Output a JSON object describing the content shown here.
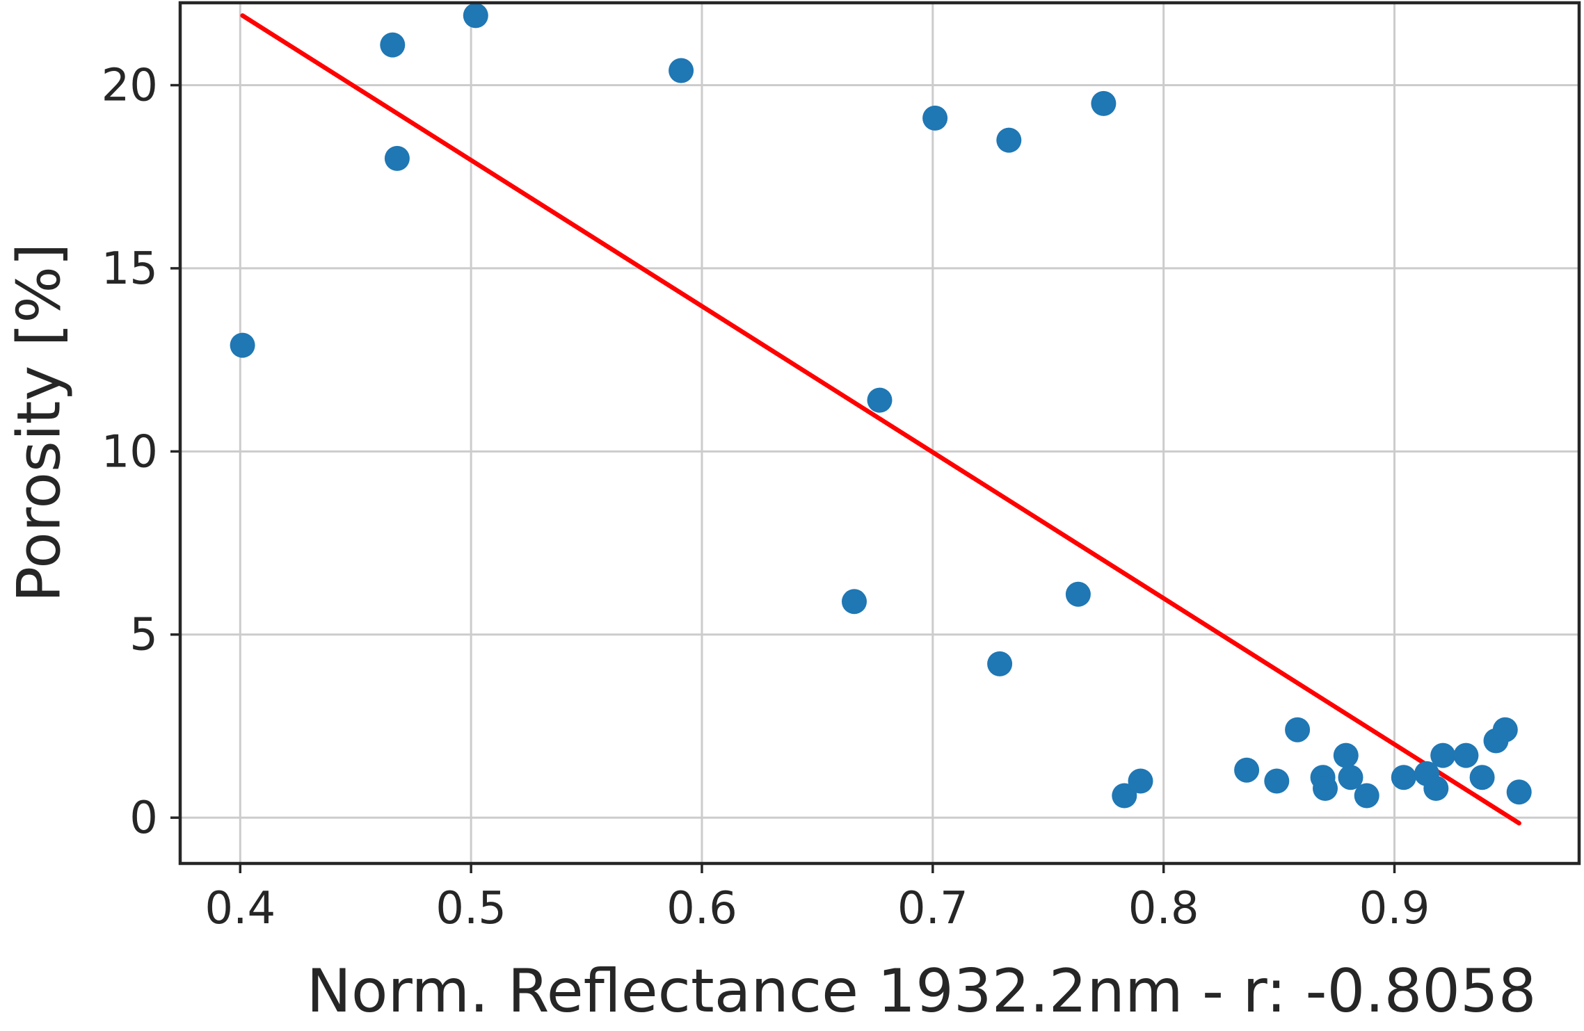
{
  "chart_data": {
    "type": "scatter",
    "title": "",
    "xlabel": "Norm. Reflectance 1932.2nm - r:  -0.8058",
    "ylabel": "Porosity [%]",
    "xlim": [
      0.374,
      0.98
    ],
    "ylim": [
      -1.25,
      22.25
    ],
    "xticks": [
      0.4,
      0.5,
      0.6,
      0.7,
      0.8,
      0.9
    ],
    "xtick_labels": [
      "0.4",
      "0.5",
      "0.6",
      "0.7",
      "0.8",
      "0.9"
    ],
    "yticks": [
      0,
      5,
      10,
      15,
      20
    ],
    "ytick_labels": [
      "0",
      "5",
      "10",
      "15",
      "20"
    ],
    "grid": true,
    "colors": {
      "points": "#1f77b4",
      "fit_line": "#ff0000",
      "grid": "#cccccc",
      "frame": "#262626"
    },
    "series": [
      {
        "kind": "scatter",
        "points": [
          [
            0.401,
            12.9
          ],
          [
            0.466,
            21.1
          ],
          [
            0.468,
            18.0
          ],
          [
            0.502,
            21.9
          ],
          [
            0.591,
            20.4
          ],
          [
            0.666,
            5.9
          ],
          [
            0.677,
            11.4
          ],
          [
            0.701,
            19.1
          ],
          [
            0.729,
            4.2
          ],
          [
            0.733,
            18.5
          ],
          [
            0.763,
            6.1
          ],
          [
            0.774,
            19.5
          ],
          [
            0.783,
            0.6
          ],
          [
            0.79,
            1.0
          ],
          [
            0.836,
            1.3
          ],
          [
            0.849,
            1.0
          ],
          [
            0.858,
            2.4
          ],
          [
            0.869,
            1.1
          ],
          [
            0.87,
            0.8
          ],
          [
            0.879,
            1.7
          ],
          [
            0.881,
            1.1
          ],
          [
            0.888,
            0.6
          ],
          [
            0.904,
            1.1
          ],
          [
            0.914,
            1.2
          ],
          [
            0.918,
            0.8
          ],
          [
            0.921,
            1.7
          ],
          [
            0.931,
            1.7
          ],
          [
            0.938,
            1.1
          ],
          [
            0.944,
            2.1
          ],
          [
            0.948,
            2.4
          ],
          [
            0.954,
            0.7
          ]
        ]
      },
      {
        "kind": "line",
        "points": [
          [
            0.401,
            21.9
          ],
          [
            0.954,
            -0.15
          ]
        ]
      }
    ]
  }
}
